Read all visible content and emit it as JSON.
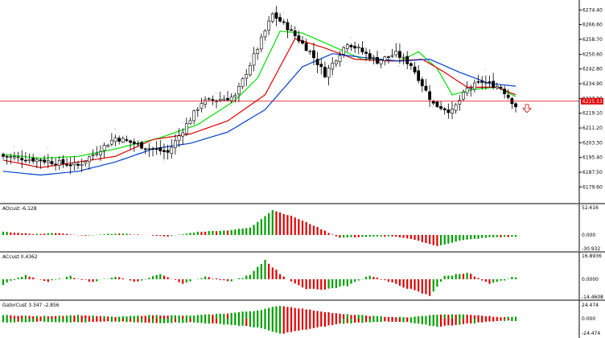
{
  "colors": {
    "background": "#ffffff",
    "candle_bull": "#ffffff",
    "candle_bear": "#000000",
    "candle_outline": "#000000",
    "ma_fast": "#00e000",
    "ma_mid": "#e00000",
    "ma_slow": "#0040d0",
    "current_price_line": "#e00000",
    "histogram_up": "#00a000",
    "histogram_down": "#e00000",
    "fractal": "#a0a0a0",
    "sell_arrow": "#e00000",
    "separator": "#000000"
  },
  "price_panel": {
    "current_price_label": "6225.53",
    "ticks": [
      "6274.40",
      "6266.60",
      "6258.70",
      "6250.60",
      "6242.80",
      "6234.90",
      "6227.00",
      "6219.10",
      "6211.20",
      "6203.30",
      "6195.40",
      "6187.50",
      "6179.60"
    ],
    "sell_arrow_icon": "down-arrow-outline"
  },
  "panels": [
    {
      "label": "AOcust -6.128",
      "ticks": [
        "52.616",
        "0.000",
        "-30.932"
      ]
    },
    {
      "label": "ACcust 0.4362",
      "ticks": [
        "16.8936",
        "0.0000",
        "-14.4608"
      ]
    },
    {
      "label": "GatorCust 3.347 -2.856",
      "ticks": [
        "24.474",
        "0.000",
        "-24.474"
      ]
    }
  ],
  "chart_data": [
    {
      "type": "candlestick",
      "title": "",
      "y_axis_ticks": [
        6274.4,
        6266.6,
        6258.7,
        6250.6,
        6242.8,
        6234.9,
        6227.0,
        6219.1,
        6211.2,
        6203.3,
        6195.4,
        6187.5,
        6179.6
      ],
      "ylim": [
        6172,
        6278
      ],
      "current_price": 6225.53,
      "key_points": [
        {
          "bar": 0,
          "price": 6196
        },
        {
          "bar": 10,
          "price": 6194
        },
        {
          "bar": 20,
          "price": 6191
        },
        {
          "bar": 30,
          "price": 6206
        },
        {
          "bar": 38,
          "price": 6201
        },
        {
          "bar": 44,
          "price": 6198
        },
        {
          "bar": 53,
          "price": 6225
        },
        {
          "bar": 62,
          "price": 6228
        },
        {
          "bar": 68,
          "price": 6254
        },
        {
          "bar": 72,
          "price": 6272
        },
        {
          "bar": 76,
          "price": 6265
        },
        {
          "bar": 82,
          "price": 6252
        },
        {
          "bar": 86,
          "price": 6240
        },
        {
          "bar": 92,
          "price": 6257
        },
        {
          "bar": 100,
          "price": 6247
        },
        {
          "bar": 105,
          "price": 6251
        },
        {
          "bar": 109,
          "price": 6245
        },
        {
          "bar": 115,
          "price": 6224
        },
        {
          "bar": 120,
          "price": 6220
        },
        {
          "bar": 124,
          "price": 6232
        },
        {
          "bar": 128,
          "price": 6236
        },
        {
          "bar": 133,
          "price": 6233
        },
        {
          "bar": 137,
          "price": 6223
        }
      ],
      "series": [
        {
          "name": "",
          "color": "#00e000",
          "values": [
            {
              "bar": 0,
              "price": 6197
            },
            {
              "bar": 10,
              "price": 6195
            },
            {
              "bar": 20,
              "price": 6196
            },
            {
              "bar": 30,
              "price": 6200
            },
            {
              "bar": 42,
              "price": 6206
            },
            {
              "bar": 52,
              "price": 6213
            },
            {
              "bar": 62,
              "price": 6226
            },
            {
              "bar": 68,
              "price": 6238
            },
            {
              "bar": 74,
              "price": 6263
            },
            {
              "bar": 80,
              "price": 6262
            },
            {
              "bar": 88,
              "price": 6255
            },
            {
              "bar": 96,
              "price": 6248
            },
            {
              "bar": 106,
              "price": 6247
            },
            {
              "bar": 111,
              "price": 6252
            },
            {
              "bar": 116,
              "price": 6243
            },
            {
              "bar": 120,
              "price": 6229
            },
            {
              "bar": 126,
              "price": 6232
            },
            {
              "bar": 132,
              "price": 6233
            },
            {
              "bar": 137,
              "price": 6228
            }
          ]
        },
        {
          "name": "",
          "color": "#e00000",
          "values": [
            {
              "bar": 0,
              "price": 6194
            },
            {
              "bar": 10,
              "price": 6190
            },
            {
              "bar": 20,
              "price": 6193
            },
            {
              "bar": 30,
              "price": 6196
            },
            {
              "bar": 40,
              "price": 6205
            },
            {
              "bar": 50,
              "price": 6208
            },
            {
              "bar": 60,
              "price": 6215
            },
            {
              "bar": 70,
              "price": 6229
            },
            {
              "bar": 78,
              "price": 6259
            },
            {
              "bar": 86,
              "price": 6254
            },
            {
              "bar": 94,
              "price": 6248
            },
            {
              "bar": 104,
              "price": 6247
            },
            {
              "bar": 112,
              "price": 6248
            },
            {
              "bar": 118,
              "price": 6241
            },
            {
              "bar": 124,
              "price": 6233
            },
            {
              "bar": 132,
              "price": 6233
            },
            {
              "bar": 137,
              "price": 6229
            }
          ]
        },
        {
          "name": "",
          "color": "#0040d0",
          "values": [
            {
              "bar": 0,
              "price": 6188
            },
            {
              "bar": 10,
              "price": 6186
            },
            {
              "bar": 20,
              "price": 6188
            },
            {
              "bar": 30,
              "price": 6193
            },
            {
              "bar": 40,
              "price": 6200
            },
            {
              "bar": 50,
              "price": 6203
            },
            {
              "bar": 60,
              "price": 6209
            },
            {
              "bar": 70,
              "price": 6221
            },
            {
              "bar": 80,
              "price": 6244
            },
            {
              "bar": 88,
              "price": 6251
            },
            {
              "bar": 96,
              "price": 6249
            },
            {
              "bar": 106,
              "price": 6247
            },
            {
              "bar": 114,
              "price": 6248
            },
            {
              "bar": 122,
              "price": 6241
            },
            {
              "bar": 130,
              "price": 6235
            },
            {
              "bar": 140,
              "price": 6233
            }
          ]
        }
      ]
    },
    {
      "type": "bar",
      "title": "AOcust -6.128",
      "ylim": [
        -30.932,
        52.616
      ],
      "y_axis_ticks": [
        52.616,
        0.0,
        -30.932
      ],
      "profile": [
        {
          "bar": 0,
          "value": 6
        },
        {
          "bar": 8,
          "value": 2
        },
        {
          "bar": 14,
          "value": 4
        },
        {
          "bar": 22,
          "value": -2
        },
        {
          "bar": 30,
          "value": 3
        },
        {
          "bar": 38,
          "value": 0
        },
        {
          "bar": 44,
          "value": -3
        },
        {
          "bar": 52,
          "value": 6
        },
        {
          "bar": 60,
          "value": 9
        },
        {
          "bar": 66,
          "value": 14
        },
        {
          "bar": 72,
          "value": 48
        },
        {
          "bar": 78,
          "value": 34
        },
        {
          "bar": 84,
          "value": 15
        },
        {
          "bar": 90,
          "value": -6
        },
        {
          "bar": 96,
          "value": -4
        },
        {
          "bar": 104,
          "value": -3
        },
        {
          "bar": 110,
          "value": -10
        },
        {
          "bar": 116,
          "value": -24
        },
        {
          "bar": 122,
          "value": -12
        },
        {
          "bar": 130,
          "value": -5
        },
        {
          "bar": 137,
          "value": -4
        }
      ]
    },
    {
      "type": "bar",
      "title": "ACcust 0.4362",
      "ylim": [
        -14.4608,
        16.8936
      ],
      "y_axis_ticks": [
        16.8936,
        0.0,
        -14.4608
      ],
      "profile": [
        {
          "bar": 0,
          "value": -4
        },
        {
          "bar": 6,
          "value": 3
        },
        {
          "bar": 12,
          "value": -2
        },
        {
          "bar": 18,
          "value": 2
        },
        {
          "bar": 24,
          "value": -2
        },
        {
          "bar": 30,
          "value": 2
        },
        {
          "bar": 36,
          "value": -2
        },
        {
          "bar": 42,
          "value": 4
        },
        {
          "bar": 48,
          "value": -3
        },
        {
          "bar": 54,
          "value": 2
        },
        {
          "bar": 60,
          "value": -2
        },
        {
          "bar": 66,
          "value": 3
        },
        {
          "bar": 70,
          "value": 14
        },
        {
          "bar": 74,
          "value": 4
        },
        {
          "bar": 80,
          "value": -7
        },
        {
          "bar": 86,
          "value": -8
        },
        {
          "bar": 92,
          "value": -5
        },
        {
          "bar": 98,
          "value": 3
        },
        {
          "bar": 104,
          "value": -3
        },
        {
          "bar": 110,
          "value": -9
        },
        {
          "bar": 114,
          "value": -13
        },
        {
          "bar": 118,
          "value": 2
        },
        {
          "bar": 124,
          "value": 5
        },
        {
          "bar": 130,
          "value": -4
        },
        {
          "bar": 137,
          "value": 2
        }
      ]
    },
    {
      "type": "bar",
      "title": "GatorCust 3.347 -2.856",
      "ylim": [
        -24.474,
        24.474
      ],
      "y_axis_ticks": [
        24.474,
        0.0,
        -24.474
      ],
      "upper_profile": [
        {
          "bar": 0,
          "value": 6
        },
        {
          "bar": 10,
          "value": 4
        },
        {
          "bar": 20,
          "value": 6
        },
        {
          "bar": 30,
          "value": 3
        },
        {
          "bar": 40,
          "value": 6
        },
        {
          "bar": 50,
          "value": 5
        },
        {
          "bar": 60,
          "value": 9
        },
        {
          "bar": 68,
          "value": 14
        },
        {
          "bar": 74,
          "value": 22
        },
        {
          "bar": 82,
          "value": 15
        },
        {
          "bar": 90,
          "value": 8
        },
        {
          "bar": 100,
          "value": 4
        },
        {
          "bar": 108,
          "value": 2
        },
        {
          "bar": 116,
          "value": 7
        },
        {
          "bar": 124,
          "value": 7
        },
        {
          "bar": 132,
          "value": 3
        },
        {
          "bar": 137,
          "value": 3
        }
      ],
      "lower_profile": [
        {
          "bar": 0,
          "value": -5
        },
        {
          "bar": 10,
          "value": -4
        },
        {
          "bar": 20,
          "value": -5
        },
        {
          "bar": 30,
          "value": -4
        },
        {
          "bar": 40,
          "value": -6
        },
        {
          "bar": 50,
          "value": -5
        },
        {
          "bar": 60,
          "value": -8
        },
        {
          "bar": 68,
          "value": -12
        },
        {
          "bar": 74,
          "value": -21
        },
        {
          "bar": 82,
          "value": -14
        },
        {
          "bar": 90,
          "value": -7
        },
        {
          "bar": 100,
          "value": -4
        },
        {
          "bar": 108,
          "value": -5
        },
        {
          "bar": 116,
          "value": -11
        },
        {
          "bar": 124,
          "value": -7
        },
        {
          "bar": 132,
          "value": -3
        },
        {
          "bar": 137,
          "value": -3
        }
      ]
    }
  ]
}
